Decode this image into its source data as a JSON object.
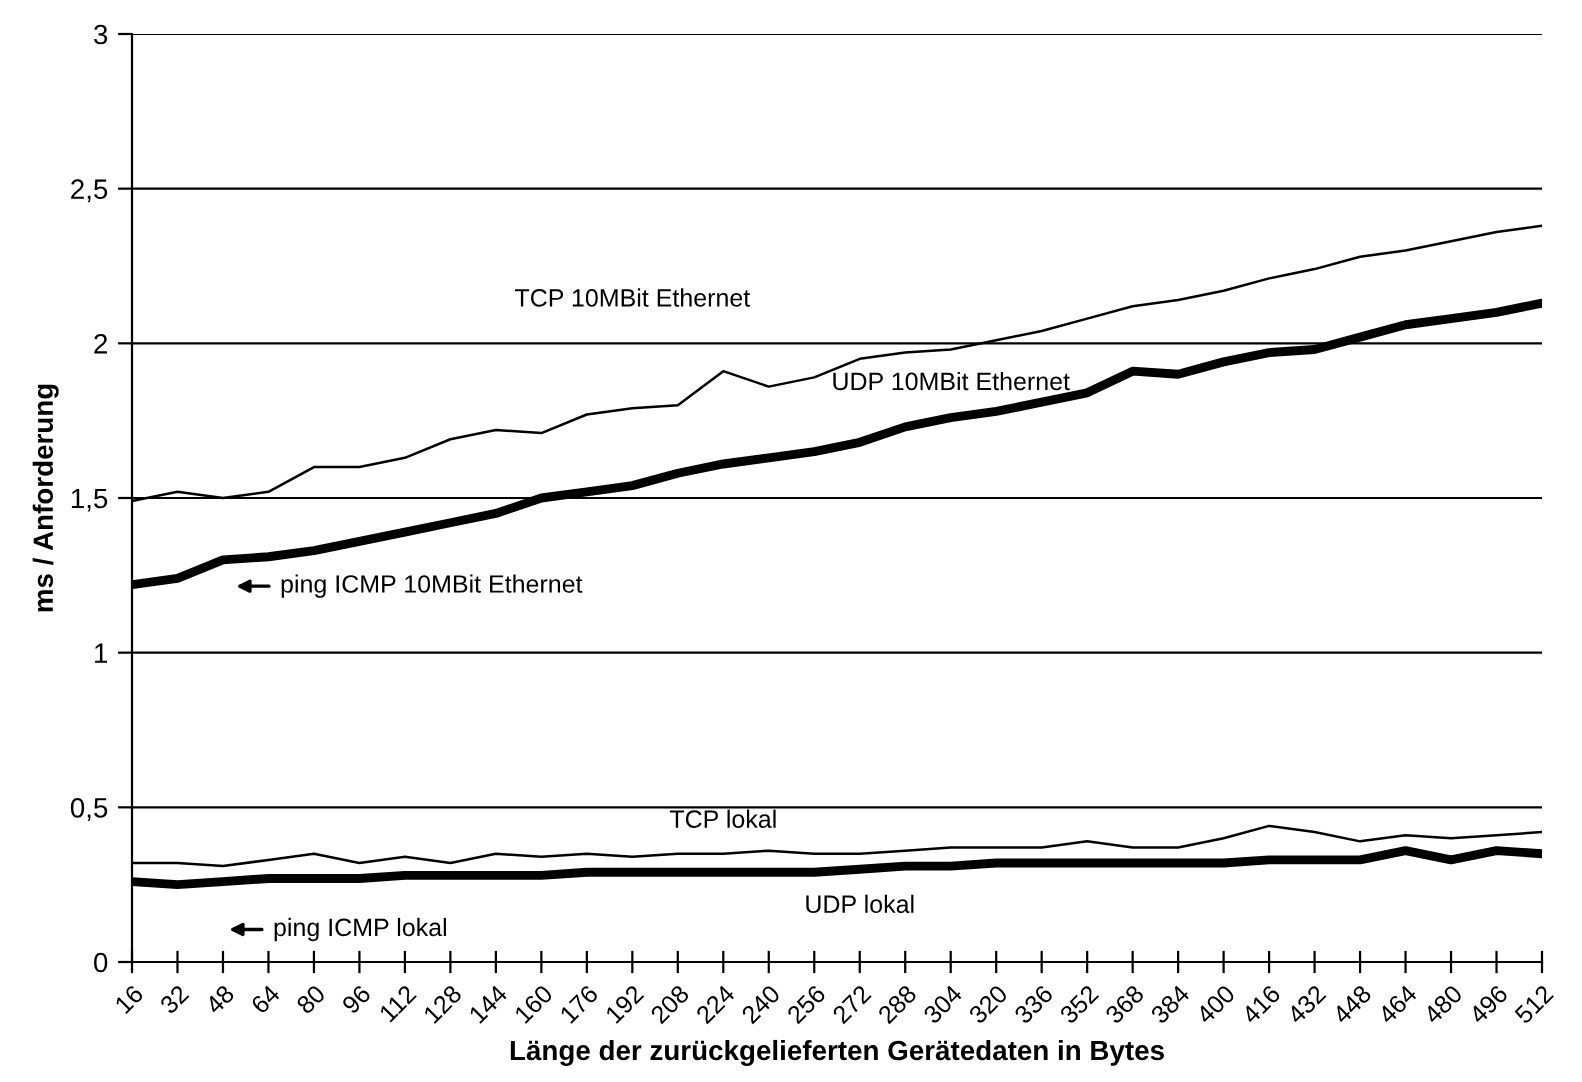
{
  "chart_data": {
    "type": "line",
    "xlabel": "Länge der zurückgelieferten Gerätedaten in Bytes",
    "ylabel": "ms / Anforderung",
    "categories": [
      "16",
      "32",
      "48",
      "64",
      "80",
      "96",
      "112",
      "128",
      "144",
      "160",
      "176",
      "192",
      "208",
      "224",
      "240",
      "256",
      "272",
      "288",
      "304",
      "320",
      "336",
      "352",
      "368",
      "384",
      "400",
      "416",
      "432",
      "448",
      "464",
      "480",
      "496",
      "512"
    ],
    "ylim": [
      0,
      3
    ],
    "yticks": [
      0,
      {
        "value": 0.5,
        "label": "0,5"
      },
      1,
      {
        "value": 1.5,
        "label": "1,5"
      },
      2,
      {
        "value": 2.5,
        "label": "2,5"
      },
      3
    ],
    "grid": "y",
    "legend": false,
    "marker": "none",
    "line_style": "solid",
    "series": [
      {
        "name": "TCP 10MBit Ethernet",
        "color": "#000000",
        "values": [
          1.49,
          1.52,
          1.5,
          1.52,
          1.6,
          1.6,
          1.63,
          1.69,
          1.72,
          1.71,
          1.77,
          1.79,
          1.8,
          1.91,
          1.86,
          1.89,
          1.95,
          1.97,
          1.98,
          2.01,
          2.04,
          2.08,
          2.12,
          2.14,
          2.17,
          2.21,
          2.24,
          2.28,
          2.3,
          2.33,
          2.36,
          2.38
        ]
      },
      {
        "name": "UDP 10MBit Ethernet",
        "color": "#000000",
        "values": [
          1.22,
          1.24,
          1.3,
          1.31,
          1.33,
          1.36,
          1.39,
          1.42,
          1.45,
          1.5,
          1.52,
          1.54,
          1.58,
          1.61,
          1.63,
          1.65,
          1.68,
          1.73,
          1.76,
          1.78,
          1.81,
          1.84,
          1.91,
          1.9,
          1.94,
          1.97,
          1.98,
          2.02,
          2.06,
          2.08,
          2.1,
          2.13
        ]
      },
      {
        "name": "TCP lokal",
        "color": "#000000",
        "values": [
          0.32,
          0.32,
          0.31,
          0.33,
          0.35,
          0.32,
          0.34,
          0.32,
          0.35,
          0.34,
          0.35,
          0.34,
          0.35,
          0.35,
          0.36,
          0.35,
          0.35,
          0.36,
          0.37,
          0.37,
          0.37,
          0.39,
          0.37,
          0.37,
          0.4,
          0.44,
          0.42,
          0.39,
          0.41,
          0.4,
          0.41,
          0.42
        ]
      },
      {
        "name": "UDP lokal",
        "color": "#000000",
        "values": [
          0.26,
          0.25,
          0.26,
          0.27,
          0.27,
          0.27,
          0.28,
          0.28,
          0.28,
          0.28,
          0.29,
          0.29,
          0.29,
          0.29,
          0.29,
          0.29,
          0.3,
          0.31,
          0.31,
          0.32,
          0.32,
          0.32,
          0.32,
          0.32,
          0.32,
          0.33,
          0.33,
          0.33,
          0.36,
          0.33,
          0.36,
          0.35
        ]
      }
    ],
    "annotations": [
      "ping ICMP 10MBit Ethernet",
      "ping ICMP lokal"
    ]
  }
}
